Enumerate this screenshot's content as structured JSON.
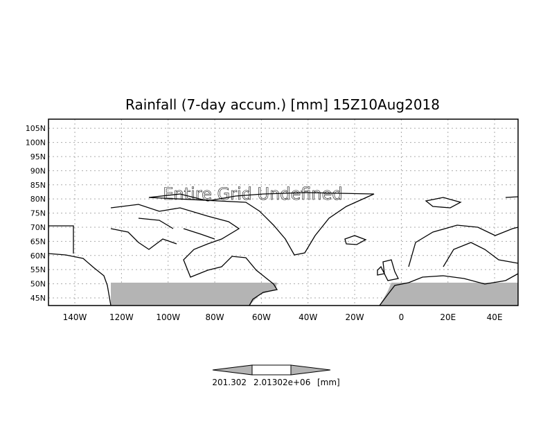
{
  "title": "Rainfall (7-day accum.) [mm] 15Z10Aug2018",
  "overlay_message": "Entire Grid Undefined",
  "lat_labels": [
    "105N",
    "100N",
    "95N",
    "90N",
    "85N",
    "80N",
    "75N",
    "70N",
    "65N",
    "60N",
    "55N",
    "50N",
    "45N"
  ],
  "lat_values": [
    105,
    100,
    95,
    90,
    85,
    80,
    75,
    70,
    65,
    60,
    55,
    50,
    45
  ],
  "lon_labels": [
    "140W",
    "120W",
    "100W",
    "80W",
    "60W",
    "40W",
    "20W",
    "0",
    "20E",
    "40E"
  ],
  "lon_values": [
    -140,
    -120,
    -100,
    -80,
    -60,
    -40,
    -20,
    0,
    20,
    40
  ],
  "colorbar": {
    "label_min": "201.302",
    "label_max": "2.01302e+06",
    "unit": "[mm]",
    "fill_color": "#b4b4b4"
  },
  "colors": {
    "undefined_shade": "#b4b4b4",
    "grid": "#aaaaaa"
  }
}
